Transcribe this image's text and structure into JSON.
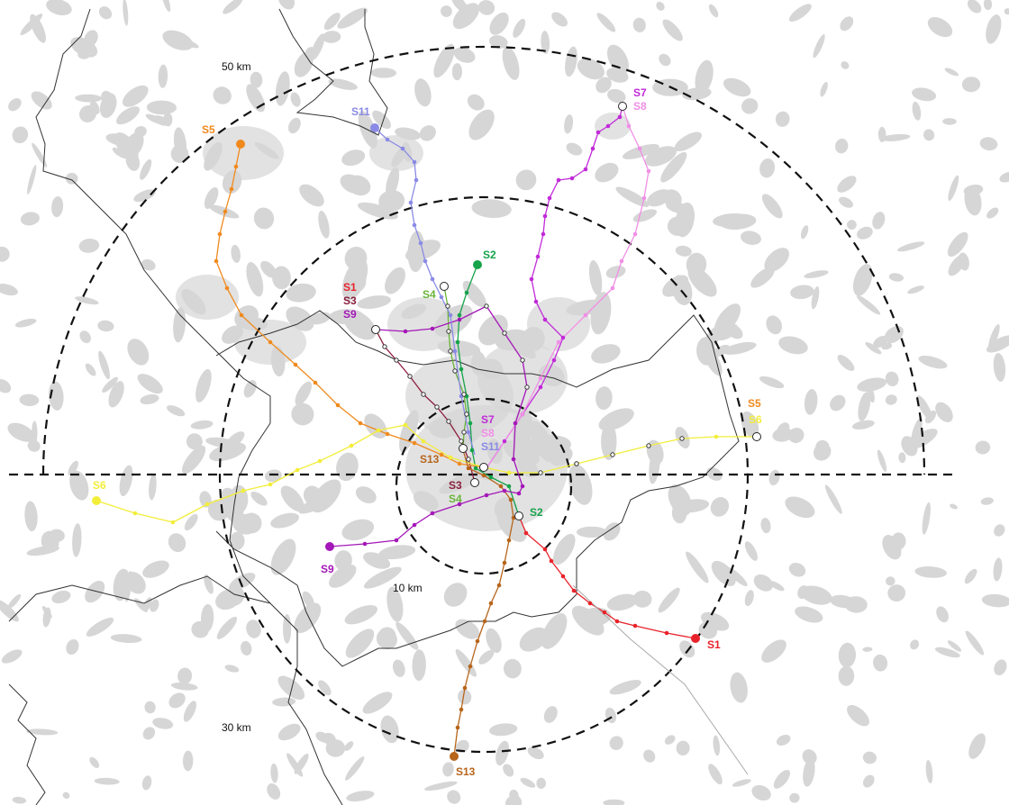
{
  "distance_labels": {
    "outer": "50 km",
    "middle": "30 km",
    "inner": "10 km"
  },
  "colors": {
    "S1": "#e8222a",
    "S2": "#16a34a",
    "S3": "#8b1d3d",
    "S4": "#6ab43a",
    "S5": "#f08a1e",
    "S6": "#f2ee3a",
    "S7": "#c22ad9",
    "S8": "#f08fe6",
    "S9": "#a417b8",
    "S11": "#8a8ae6",
    "S13": "#b7651b",
    "settlement": "#d6d6d6",
    "border": "#333333",
    "circle": "#111111"
  },
  "line_labels": {
    "s1_end": "S1",
    "s2_end": "S2",
    "s2_center": "S2",
    "s5_end": "S5",
    "s5_east": "S5",
    "s6_east": "S6",
    "s6_west": "S6",
    "s7_end": "S7",
    "s8_end": "S8",
    "s9_end": "S9",
    "s11_end": "S11",
    "s13_end": "S13",
    "nw_s1": "S1",
    "nw_s3": "S3",
    "nw_s9": "S9",
    "n_s4": "S4",
    "c_s7": "S7",
    "c_s8": "S8",
    "c_s11": "S11",
    "c_s13": "S13",
    "c_s3": "S3",
    "c_s4": "S4"
  }
}
